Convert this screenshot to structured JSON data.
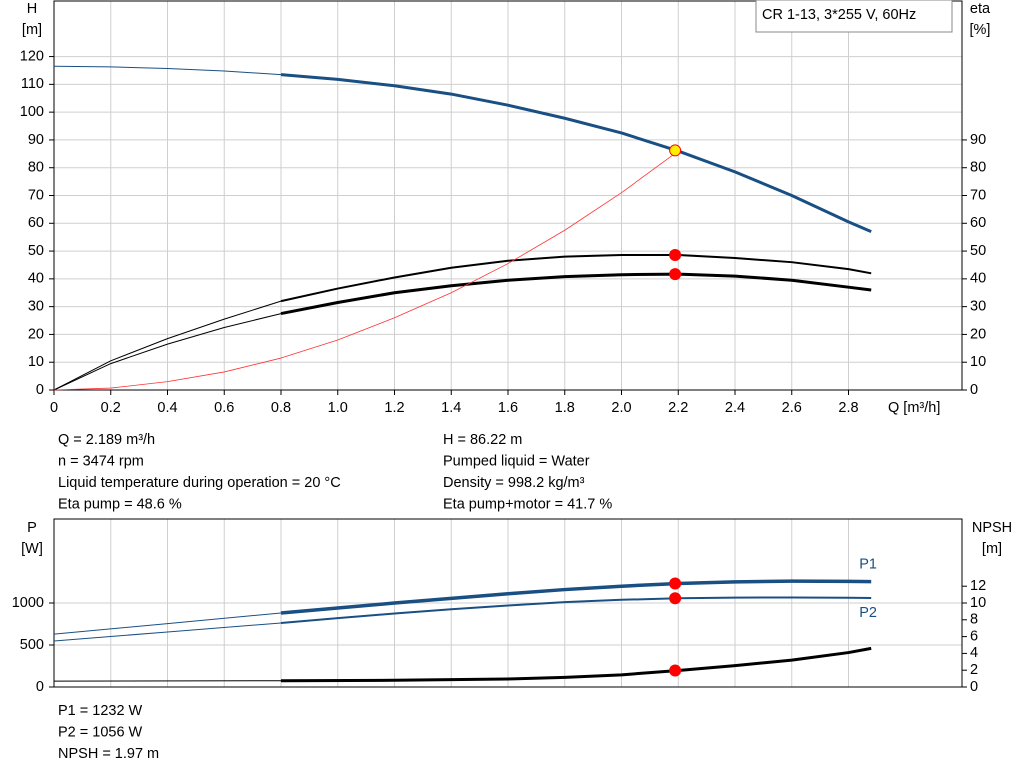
{
  "chart_data": [
    {
      "type": "line",
      "box": "CR 1-13, 3*255 V, 60Hz",
      "y_label": [
        "H",
        "[m]"
      ],
      "y2_label": [
        "eta",
        "[%]"
      ],
      "x_label": "Q [m³/h]",
      "xlim": [
        0,
        3.2
      ],
      "xticks": [
        0,
        0.2,
        0.4,
        0.6,
        0.8,
        {
          "value": 1,
          "label": "1.0"
        },
        1.2,
        1.4,
        1.6,
        1.8,
        {
          "value": 2,
          "label": "2.0"
        },
        2.2,
        2.4,
        2.6,
        2.8
      ],
      "ylim": [
        0,
        140
      ],
      "yticks": [
        0,
        10,
        20,
        30,
        40,
        50,
        60,
        70,
        80,
        90,
        100,
        110,
        120
      ],
      "y2lim": [
        0,
        140
      ],
      "y2ticks": [
        0,
        10,
        20,
        30,
        40,
        50,
        60,
        70,
        80,
        90
      ],
      "grid": true,
      "series": [
        {
          "color": "#1a4f84",
          "width": 1,
          "x": [
            0,
            0.2,
            0.4,
            0.6,
            0.8
          ],
          "values": [
            116.5,
            116.3,
            115.7,
            114.8,
            113.5
          ]
        },
        {
          "color": "#1a4f84",
          "width": 3,
          "x": [
            0.8,
            1.0,
            1.2,
            1.4,
            1.6,
            1.8,
            2.0,
            2.2,
            2.4,
            2.6,
            2.8,
            2.88
          ],
          "values": [
            113.5,
            111.8,
            109.5,
            106.5,
            102.5,
            97.8,
            92.5,
            86,
            78.5,
            70,
            60.5,
            57
          ]
        },
        {
          "color": "#000000",
          "width": 1,
          "axis": "y2",
          "x": [
            0,
            0.2,
            0.4,
            0.6,
            0.8
          ],
          "values": [
            0,
            10.5,
            18.5,
            25.5,
            32
          ]
        },
        {
          "color": "#000000",
          "width": 2,
          "axis": "y2",
          "x": [
            0.8,
            1.0,
            1.2,
            1.4,
            1.6,
            1.8,
            2.0,
            2.2,
            2.4,
            2.6,
            2.8,
            2.88
          ],
          "values": [
            32,
            36.5,
            40.5,
            44,
            46.5,
            48,
            48.6,
            48.6,
            47.5,
            46,
            43.5,
            42
          ]
        },
        {
          "color": "#000000",
          "width": 1,
          "axis": "y2",
          "x": [
            0,
            0.2,
            0.4,
            0.6,
            0.8
          ],
          "values": [
            0,
            9.5,
            16.5,
            22.5,
            27.5
          ]
        },
        {
          "color": "#000000",
          "width": 3,
          "axis": "y2",
          "x": [
            0.8,
            1.0,
            1.2,
            1.4,
            1.6,
            1.8,
            2.0,
            2.2,
            2.4,
            2.6,
            2.8,
            2.88
          ],
          "values": [
            27.5,
            31.5,
            35,
            37.5,
            39.5,
            40.8,
            41.5,
            41.7,
            41,
            39.5,
            37,
            36
          ]
        },
        {
          "color": "#ff3333",
          "width": 0.8,
          "x": [
            0,
            0.2,
            0.4,
            0.6,
            0.8,
            1.0,
            1.2,
            1.4,
            1.6,
            1.8,
            2.0,
            2.2
          ],
          "values": [
            0,
            0.7,
            3,
            6.5,
            11.5,
            18,
            26,
            35,
            45.5,
            57.5,
            71,
            86
          ]
        }
      ],
      "markers": [
        {
          "x": 2.189,
          "value": 86.22,
          "color": "#ffee00",
          "stroke": "#ff0000"
        },
        {
          "x": 2.189,
          "value": 48.6,
          "axis": "y2",
          "color": "#ff0000",
          "stroke": "#ff0000"
        },
        {
          "x": 2.189,
          "value": 41.7,
          "axis": "y2",
          "color": "#ff0000",
          "stroke": "#ff0000"
        }
      ],
      "notes": [
        [
          "Q = 2.189 m³/h",
          "n = 3474 rpm",
          "Liquid temperature during operation = 20 °C",
          "Eta pump = 48.6 %"
        ],
        [
          "H = 86.22 m",
          "Pumped liquid = Water",
          "Density = 998.2 kg/m³",
          "Eta pump+motor = 41.7 %"
        ]
      ]
    },
    {
      "type": "line",
      "y_label": [
        "P",
        "[W]"
      ],
      "y2_label": [
        "NPSH",
        "[m]"
      ],
      "xlim": [
        0,
        3.2
      ],
      "xticks": [
        0,
        0.2,
        0.4,
        0.6,
        0.8,
        1,
        1.2,
        1.4,
        1.6,
        1.8,
        2,
        2.2,
        2.4,
        2.6,
        2.8
      ],
      "x_tick_labels": false,
      "ylim": [
        0,
        2000
      ],
      "yticks": [
        0,
        500,
        1000
      ],
      "y2lim": [
        0,
        20
      ],
      "y2ticks": [
        0,
        2,
        4,
        6,
        8,
        10,
        12
      ],
      "grid": true,
      "series": [
        {
          "color": "#1a4f84",
          "width": 1,
          "x": [
            0,
            0.4,
            0.8
          ],
          "values": [
            630,
            755,
            881
          ]
        },
        {
          "name": "P1",
          "label_pos": "above",
          "color": "#1a4f84",
          "width": 3.5,
          "x": [
            0.8,
            1.0,
            1.2,
            1.4,
            1.6,
            1.8,
            2.0,
            2.2,
            2.4,
            2.6,
            2.8,
            2.88
          ],
          "values": [
            881,
            940,
            1000,
            1055,
            1110,
            1160,
            1200,
            1232,
            1252,
            1260,
            1258,
            1255
          ]
        },
        {
          "color": "#1a4f84",
          "width": 1,
          "x": [
            0,
            0.4,
            0.8
          ],
          "values": [
            548,
            655,
            762
          ]
        },
        {
          "name": "P2",
          "label_pos": "below",
          "color": "#1a4f84",
          "width": 2,
          "x": [
            0.8,
            1.0,
            1.2,
            1.4,
            1.6,
            1.8,
            2.0,
            2.2,
            2.4,
            2.6,
            2.8,
            2.88
          ],
          "values": [
            762,
            820,
            875,
            925,
            970,
            1010,
            1038,
            1056,
            1064,
            1066,
            1063,
            1060
          ]
        },
        {
          "color": "#000000",
          "width": 1,
          "axis": "y2",
          "x": [
            0,
            0.8
          ],
          "values": [
            0.7,
            0.75
          ]
        },
        {
          "color": "#000000",
          "width": 3,
          "axis": "y2",
          "x": [
            0.8,
            1.2,
            1.6,
            1.8,
            2.0,
            2.2,
            2.4,
            2.6,
            2.8,
            2.88
          ],
          "values": [
            0.75,
            0.8,
            0.95,
            1.15,
            1.45,
            1.97,
            2.55,
            3.2,
            4.1,
            4.6
          ]
        }
      ],
      "markers": [
        {
          "x": 2.189,
          "value": 1232,
          "color": "#ff0000",
          "stroke": "#ff0000"
        },
        {
          "x": 2.189,
          "value": 1056,
          "color": "#ff0000",
          "stroke": "#ff0000"
        },
        {
          "x": 2.189,
          "value": 1.97,
          "axis": "y2",
          "color": "#ff0000",
          "stroke": "#ff0000"
        }
      ],
      "notes": [
        [
          "P1 = 1232 W",
          "P2 = 1056 W",
          "NPSH = 1.97 m"
        ]
      ]
    }
  ]
}
